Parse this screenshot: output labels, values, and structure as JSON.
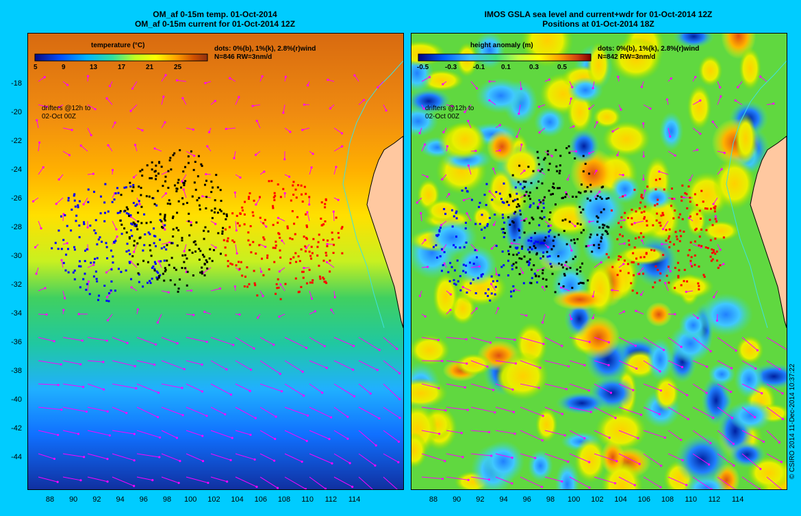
{
  "left_panel": {
    "title_line1": "OM_af 0-15m temp. 01-Oct-2014",
    "title_line2": "OM_af 0-15m current for 01-Oct-2014 12Z",
    "colorbar_title": "temperature (°C)",
    "colorbar_ticks": [
      "5",
      "9",
      "13",
      "17",
      "21",
      "25"
    ],
    "colorbar_colors": [
      "#0a0a80",
      "#0050ff",
      "#00b4ff",
      "#30e0a0",
      "#c0ff20",
      "#ffff00",
      "#ffa000",
      "#d05000",
      "#903010"
    ],
    "dots_note": "dots: 0%(b), 1%(k), 2.8%(r)wind",
    "count_note": "N=846 RW=3nm/d",
    "drifters_line1": "drifters @12h to",
    "drifters_line2": "02-Oct 00Z"
  },
  "right_panel": {
    "title_line1": "IMOS GSLA sea level and current+wdr for 01-Oct-2014 12Z",
    "title_line2": "Positions at 01-Oct-2014 18Z",
    "colorbar_title": "height anomaly (m)",
    "colorbar_ticks": [
      "-0.5",
      "-0.3",
      "-0.1",
      "0.1",
      "0.3",
      "0.5"
    ],
    "colorbar_colors": [
      "#000080",
      "#0060ff",
      "#40c0ff",
      "#40e080",
      "#c0ff40",
      "#ffff00",
      "#ffa000",
      "#d04010",
      "#800000"
    ],
    "dots_note": "dots: 0%(b), 1%(k), 2.8%(r)wind",
    "count_note": "N=842 RW=3nm/d",
    "drifters_line1": "drifters @12h to",
    "drifters_line2": "02-Oct 00Z"
  },
  "lat_labels": [
    "-18",
    "-20",
    "-22",
    "-24",
    "-26",
    "-28",
    "-30",
    "-32",
    "-34",
    "-36",
    "-38",
    "-40",
    "-42",
    "-44"
  ],
  "lon_labels": [
    "88",
    "90",
    "92",
    "94",
    "96",
    "98",
    "100",
    "102",
    "104",
    "106",
    "108",
    "110",
    "112",
    "114"
  ],
  "credit": "© CSIRO 2014   11-Dec-2014 10:37:22",
  "colors": {
    "background": "#00ccff",
    "land": "#ffc8a0",
    "arrow": "#ff00ff",
    "drifter_blue": "#0000ff",
    "drifter_black": "#000000",
    "drifter_red": "#ff0000"
  }
}
